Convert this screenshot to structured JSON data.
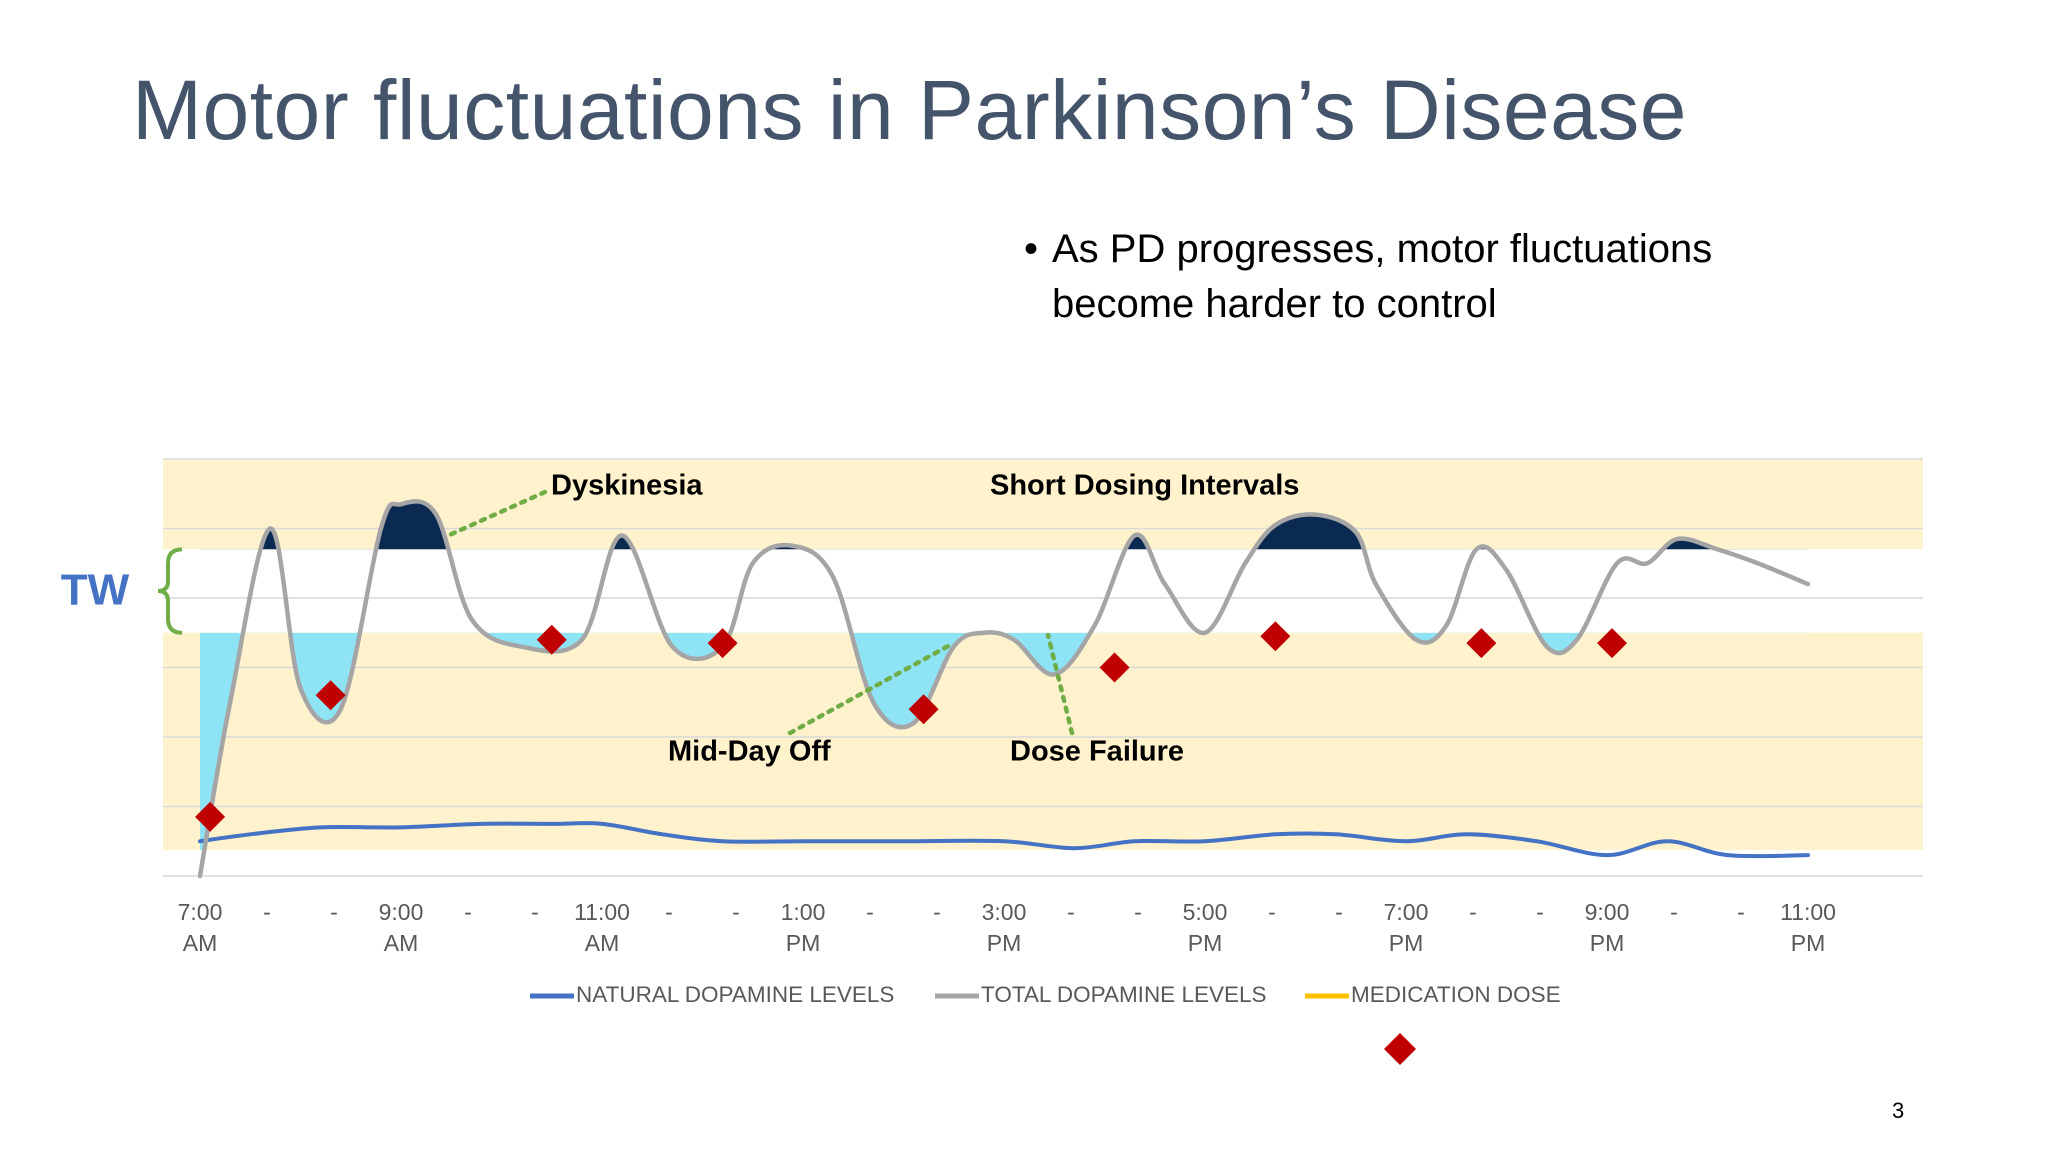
{
  "slide": {
    "title": "Motor fluctuations in Parkinson’s Disease",
    "bullet": "As PD progresses, motor fluctuations become harder to control",
    "page_number": "3"
  },
  "chart_data": {
    "type": "line",
    "title": "",
    "xlabel": "",
    "ylabel": "",
    "x_tick_labels": [
      [
        "7:00",
        "AM"
      ],
      [
        "-",
        ""
      ],
      [
        "-",
        ""
      ],
      [
        "9:00",
        "AM"
      ],
      [
        "-",
        ""
      ],
      [
        "-",
        ""
      ],
      [
        "11:00",
        "AM"
      ],
      [
        "-",
        ""
      ],
      [
        "-",
        ""
      ],
      [
        "1:00",
        "PM"
      ],
      [
        "-",
        ""
      ],
      [
        "-",
        ""
      ],
      [
        "3:00",
        "PM"
      ],
      [
        "-",
        ""
      ],
      [
        "-",
        ""
      ],
      [
        "5:00",
        "PM"
      ],
      [
        "-",
        ""
      ],
      [
        "-",
        ""
      ],
      [
        "7:00",
        "PM"
      ],
      [
        "-",
        ""
      ],
      [
        "-",
        ""
      ],
      [
        "9:00",
        "PM"
      ],
      [
        "-",
        ""
      ],
      [
        "-",
        ""
      ],
      [
        "11:00",
        "PM"
      ]
    ],
    "x_range_hours": [
      7,
      23
    ],
    "y_range": [
      0,
      6
    ],
    "gridlines": true,
    "therapeutic_window": {
      "label": "TW",
      "low": 3.5,
      "high": 4.7
    },
    "colors": {
      "band": "#fff2cc",
      "window": "#ffffff",
      "dyskinesia_fill": "#0b2a52",
      "off_fill": "#8ee3f5",
      "natural": "#4472c4",
      "total": "#a5a5a5",
      "medication": "#ffc000",
      "dose_marker": "#c00000",
      "annotation_line": "#70ad47",
      "tw_label": "#4472c4",
      "tw_bracket": "#70ad47"
    },
    "series": [
      {
        "name": "NATURAL DOPAMINE LEVELS",
        "x": [
          7,
          7.5,
          8.2,
          9,
          9.8,
          10.5,
          11,
          11.6,
          12.2,
          13,
          14,
          15,
          15.7,
          16.3,
          17,
          17.7,
          18.3,
          19,
          19.6,
          20.3,
          21,
          21.6,
          22.2,
          23
        ],
        "values": [
          0.5,
          0.6,
          0.7,
          0.7,
          0.75,
          0.75,
          0.75,
          0.6,
          0.5,
          0.5,
          0.5,
          0.5,
          0.4,
          0.5,
          0.5,
          0.6,
          0.6,
          0.5,
          0.6,
          0.5,
          0.3,
          0.5,
          0.3,
          0.3
        ]
      },
      {
        "name": "TOTAL DOPAMINE LEVELS",
        "x": [
          7,
          7.3,
          7.7,
          8.0,
          8.4,
          8.8,
          9.0,
          9.35,
          9.7,
          10.2,
          10.8,
          11.2,
          11.7,
          12.2,
          12.5,
          12.9,
          13.3,
          13.7,
          14.1,
          14.5,
          14.8,
          15.1,
          15.5,
          15.9,
          16.3,
          16.6,
          17.0,
          17.4,
          17.7,
          18.1,
          18.5,
          18.7,
          19.1,
          19.4,
          19.7,
          20.0,
          20.4,
          20.7,
          21.1,
          21.4,
          21.7,
          22.1,
          22.5,
          23.0
        ],
        "values": [
          0,
          2.5,
          5.0,
          2.7,
          2.4,
          5.0,
          5.35,
          5.2,
          3.7,
          3.3,
          3.4,
          4.9,
          3.3,
          3.3,
          4.5,
          4.75,
          4.3,
          2.5,
          2.2,
          3.3,
          3.5,
          3.4,
          2.9,
          3.6,
          4.9,
          4.2,
          3.5,
          4.5,
          5.05,
          5.2,
          4.95,
          4.2,
          3.4,
          3.6,
          4.7,
          4.4,
          3.3,
          3.4,
          4.5,
          4.5,
          4.85,
          4.7,
          4.5,
          4.2
        ]
      },
      {
        "name": "MEDICATION DOSE",
        "x": [],
        "values": []
      }
    ],
    "dose_markers": {
      "x": [
        7.1,
        8.3,
        10.5,
        12.2,
        14.2,
        16.1,
        17.7,
        19.75,
        21.05
      ],
      "values": [
        0.85,
        2.6,
        3.4,
        3.35,
        2.4,
        3.0,
        3.45,
        3.35,
        3.35
      ]
    },
    "annotations": [
      {
        "text": "Dyskinesia"
      },
      {
        "text": "Short Dosing Intervals"
      },
      {
        "text": "Mid-Day Off"
      },
      {
        "text": "Dose Failure"
      }
    ],
    "legend": {
      "position": "bottom",
      "entries": [
        "NATURAL DOPAMINE LEVELS",
        "TOTAL DOPAMINE LEVELS",
        "MEDICATION DOSE"
      ]
    }
  }
}
